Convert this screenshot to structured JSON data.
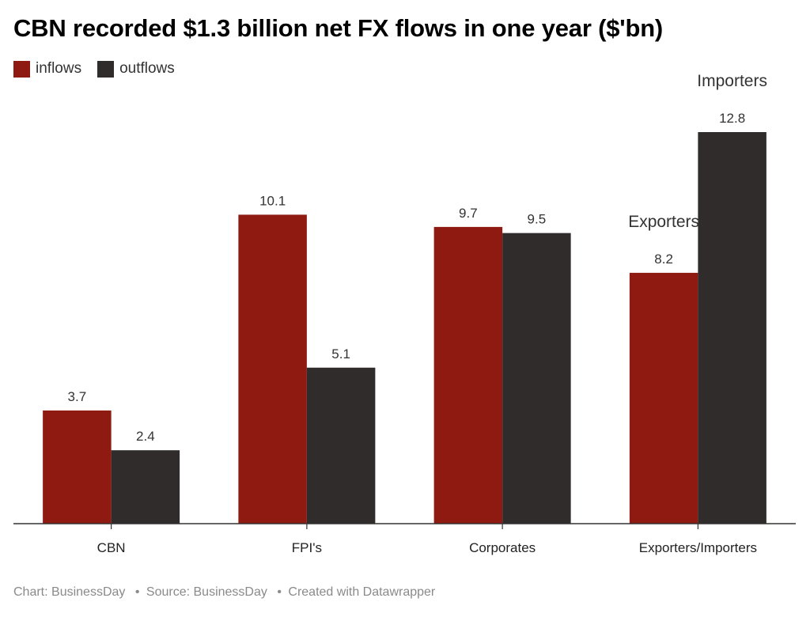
{
  "colors": {
    "inflows": "#8e1a12",
    "outflows": "#302c2b",
    "axis": "#333333",
    "footer": "#8a8a8a"
  },
  "footer": {
    "chart": "Chart: BusinessDay",
    "source": "Source: BusinessDay",
    "created": "Created with Datawrapper",
    "separator": "•"
  },
  "chart_data": {
    "type": "bar",
    "title": "CBN recorded $1.3 billion net FX flows in one year ($'bn)",
    "xlabel": "",
    "ylabel": "",
    "ylim": [
      0,
      12.8
    ],
    "grid": false,
    "legend_position": "top-left",
    "categories": [
      "CBN",
      "FPI's",
      "Corporates",
      "Exporters/Importers"
    ],
    "series": [
      {
        "name": "inflows",
        "values": [
          3.7,
          10.1,
          9.7,
          8.2
        ],
        "labels": [
          "3.7",
          "10.1",
          "9.7",
          "8.2"
        ]
      },
      {
        "name": "outflows",
        "values": [
          2.4,
          5.1,
          9.5,
          12.8
        ],
        "labels": [
          "2.4",
          "5.1",
          "9.5",
          "12.8"
        ]
      }
    ],
    "annotations": [
      {
        "text": "Exporters",
        "category": "Exporters/Importers",
        "series": "inflows"
      },
      {
        "text": "Importers",
        "category": "Exporters/Importers",
        "series": "outflows"
      }
    ]
  }
}
